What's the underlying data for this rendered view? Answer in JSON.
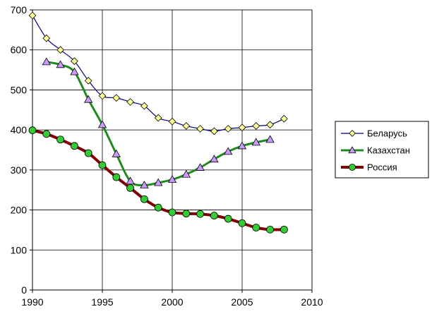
{
  "chart_data": {
    "type": "line",
    "title": "",
    "xlabel": "",
    "ylabel": "",
    "xlim": [
      1990,
      2010
    ],
    "ylim": [
      0,
      700
    ],
    "xticks": [
      1990,
      1995,
      2000,
      2005,
      2010
    ],
    "yticks": [
      0,
      100,
      200,
      300,
      400,
      500,
      600,
      700
    ],
    "grid": true,
    "legend_position": "right",
    "series": [
      {
        "name": "Беларусь",
        "color": "#00007f",
        "marker": "diamond",
        "marker_fill": "#ffff99",
        "x": [
          1990,
          1991,
          1992,
          1993,
          1994,
          1995,
          1996,
          1997,
          1998,
          1999,
          2000,
          2001,
          2002,
          2003,
          2004,
          2005,
          2006,
          2007,
          2008
        ],
        "y": [
          686,
          629,
          600,
          572,
          523,
          485,
          480,
          470,
          460,
          430,
          421,
          410,
          403,
          397,
          403,
          406,
          410,
          413,
          428
        ]
      },
      {
        "name": "Казахстан",
        "color": "#1f8a1f",
        "marker": "triangle",
        "marker_fill": "#cc99ff",
        "x": [
          1991,
          1992,
          1993,
          1994,
          1995,
          1996,
          1997,
          1998,
          1999,
          2000,
          2001,
          2002,
          2003,
          2004,
          2005,
          2006,
          2007
        ],
        "y": [
          570,
          563,
          545,
          476,
          413,
          340,
          272,
          262,
          268,
          276,
          289,
          306,
          327,
          346,
          360,
          369,
          376
        ]
      },
      {
        "name": "Россия",
        "color": "#7f0000",
        "marker": "circle",
        "marker_fill": "#33cc33",
        "x": [
          1990,
          1991,
          1992,
          1993,
          1994,
          1995,
          1996,
          1997,
          1998,
          1999,
          2000,
          2001,
          2002,
          2003,
          2004,
          2005,
          2006,
          2007,
          2008
        ],
        "y": [
          399,
          390,
          376,
          360,
          342,
          312,
          282,
          255,
          227,
          206,
          194,
          191,
          190,
          186,
          178,
          167,
          156,
          151,
          151
        ]
      }
    ]
  }
}
